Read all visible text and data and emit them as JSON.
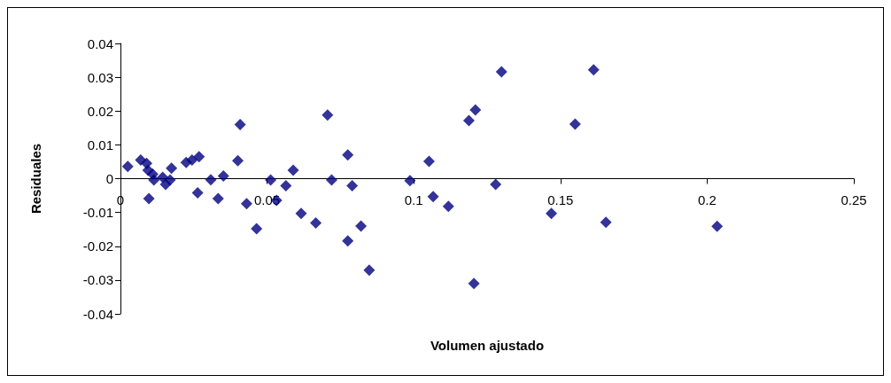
{
  "chart_data": {
    "type": "scatter",
    "xlabel": "Volumen ajustado",
    "ylabel": "Residuales",
    "x": [
      0.0025,
      0.0069,
      0.0089,
      0.0094,
      0.0114,
      0.011,
      0.0144,
      0.0154,
      0.0174,
      0.0169,
      0.0097,
      0.0224,
      0.0244,
      0.0268,
      0.0263,
      0.0308,
      0.0333,
      0.0351,
      0.04,
      0.0408,
      0.043,
      0.0464,
      0.0512,
      0.0532,
      0.0706,
      0.0775,
      0.072,
      0.079,
      0.0589,
      0.0564,
      0.0616,
      0.0666,
      0.082,
      0.0775,
      0.0848,
      0.0987,
      0.1299,
      0.1613,
      0.121,
      0.1188,
      0.155,
      0.1052,
      0.1279,
      0.1066,
      0.1118,
      0.1469,
      0.1655,
      0.1205,
      0.2034
    ],
    "series": [
      {
        "color": "#000080",
        "values": [
          0.0036,
          0.0055,
          0.0045,
          0.0025,
          -0.0004,
          0.0013,
          0.0004,
          -0.0017,
          0.0031,
          -0.0004,
          -0.0059,
          0.0048,
          0.0055,
          0.0065,
          -0.0042,
          -0.0003,
          -0.0059,
          0.0008,
          0.0053,
          0.016,
          -0.0074,
          -0.0148,
          -0.0004,
          -0.0064,
          0.0188,
          0.007,
          -0.0004,
          -0.0021,
          0.0025,
          -0.0021,
          -0.0103,
          -0.0131,
          -0.014,
          -0.0184,
          -0.0271,
          -0.0006,
          0.0316,
          0.0322,
          0.0203,
          0.0172,
          0.0161,
          0.0051,
          -0.0017,
          -0.0053,
          -0.0082,
          -0.0103,
          -0.0129,
          -0.031,
          -0.0141
        ]
      }
    ],
    "xlim": [
      0,
      0.25
    ],
    "xticks": [
      0,
      0.05,
      0.1,
      0.15,
      0.2,
      0.25
    ],
    "ylim": [
      -0.04,
      0.04
    ],
    "yticks": [
      -0.04,
      -0.03,
      -0.02,
      -0.01,
      0,
      0.01,
      0.02,
      0.03,
      0.04
    ],
    "marker": "diamond",
    "grid": false
  }
}
